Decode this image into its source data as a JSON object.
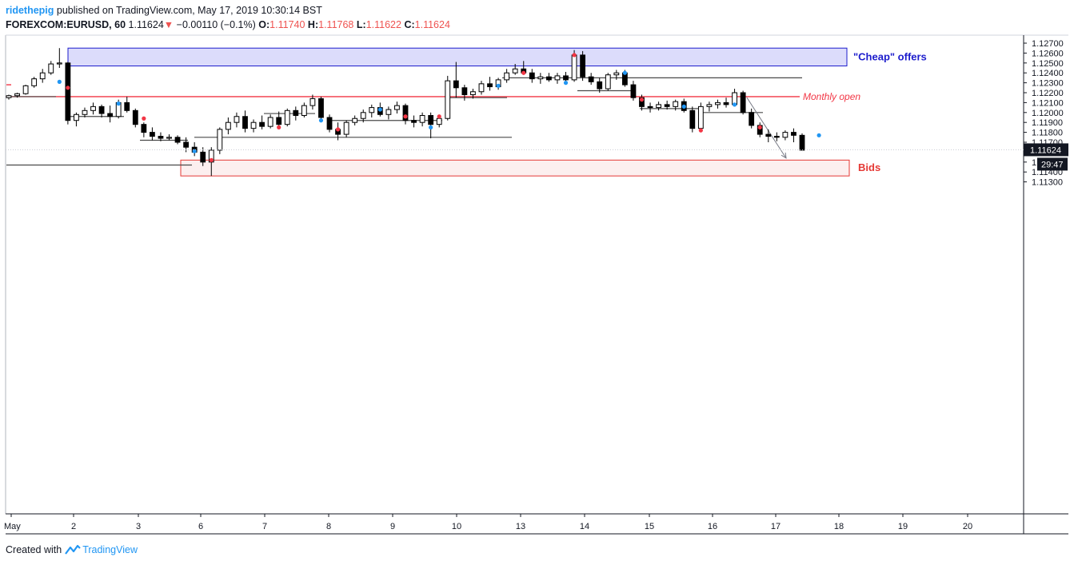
{
  "header": {
    "author": "ridethepig",
    "published_text": "published on TradingView.com, May 17, 2019 10:30:14 BST",
    "symbol": "FOREXCOM:EURUSD, 60",
    "last": "1.11624",
    "change_arrow": "▼",
    "change": "−0.00110 (−0.1%)",
    "open_label": "O:",
    "open_value": "1.11740",
    "high_label": "H:",
    "high_value": "1.11768",
    "low_label": "L:",
    "low_value": "1.11622",
    "close_label": "C:",
    "close_value": "1.11624"
  },
  "footer": {
    "created_with": "Created with",
    "brand": "TradingView"
  },
  "price_tag": {
    "value": "1.11624",
    "countdown": "29:47"
  },
  "colors": {
    "candle_up": "#ffffff",
    "candle_down": "#000000",
    "wick": "#000000",
    "monthly_open": "#f23645",
    "offer_zone_fill": "#dcdcfb",
    "offer_zone_stroke": "#1c1ccc",
    "bid_zone_fill": "#fcefef",
    "bid_zone_stroke": "#e53935",
    "marker_blue": "#2196f3",
    "marker_red": "#f23645"
  },
  "chart_data": {
    "type": "candlestick",
    "title": "",
    "ylim": [
      1.1125,
      1.1274
    ],
    "y_ticks": [
      "1.12700",
      "1.12600",
      "1.12500",
      "1.12400",
      "1.12300",
      "1.12200",
      "1.12100",
      "1.12000",
      "1.11900",
      "1.11800",
      "1.11700",
      "1.11500",
      "1.11400",
      "1.11300"
    ],
    "x_ticks": [
      "May",
      "2",
      "3",
      "6",
      "7",
      "8",
      "9",
      "10",
      "13",
      "14",
      "15",
      "16",
      "17",
      "18",
      "19",
      "20"
    ],
    "grid": false,
    "annotations": {
      "offer_zone": {
        "label": "\"Cheap\" offers",
        "y_top": 1.1265,
        "y_bottom": 1.1247,
        "x_from": "2",
        "x_to": "16"
      },
      "bid_zone": {
        "label": "Bids",
        "y_top": 1.1152,
        "y_bottom": 1.1136,
        "x_from": "6",
        "x_to": "17"
      },
      "monthly_open": {
        "label": "Monthly open",
        "y": 1.1216
      },
      "projection_arrow": {
        "from_y": 1.1215,
        "to_y": 1.1154,
        "x_from": "16",
        "x_to": "17"
      }
    },
    "series": [
      {
        "points": [
          [
            1.1215,
            1.1218,
            1.1213,
            1.1217
          ],
          [
            1.1217,
            1.122,
            1.1215,
            1.1219
          ],
          [
            1.1219,
            1.1228,
            1.1218,
            1.1227
          ],
          [
            1.1227,
            1.1236,
            1.1225,
            1.1234
          ],
          [
            1.1234,
            1.1244,
            1.123,
            1.124
          ],
          [
            1.124,
            1.1252,
            1.1238,
            1.1249
          ],
          [
            1.1249,
            1.1265,
            1.1245,
            1.125
          ],
          [
            1.125,
            1.1251,
            1.1188,
            1.1192
          ],
          [
            1.1192,
            1.12,
            1.1186,
            1.1198
          ],
          [
            1.1198,
            1.1205,
            1.1195,
            1.1202
          ],
          [
            1.1202,
            1.121,
            1.1198,
            1.1206
          ],
          [
            1.1206,
            1.1208,
            1.1195,
            1.1199
          ],
          [
            1.1199,
            1.1207,
            1.119,
            1.1196
          ],
          [
            1.1196,
            1.1213,
            1.1194,
            1.121
          ],
          [
            1.121,
            1.1216,
            1.12,
            1.1202
          ],
          [
            1.1202,
            1.1204,
            1.1185,
            1.1188
          ],
          [
            1.1188,
            1.119,
            1.1175,
            1.118
          ],
          [
            1.118,
            1.1185,
            1.1172,
            1.1176
          ],
          [
            1.1176,
            1.118,
            1.1171,
            1.1174
          ],
          [
            1.1174,
            1.1178,
            1.1172,
            1.1175
          ],
          [
            1.1175,
            1.1177,
            1.1168,
            1.117
          ],
          [
            1.117,
            1.1175,
            1.116,
            1.1165
          ],
          [
            1.1165,
            1.117,
            1.1156,
            1.116
          ],
          [
            1.116,
            1.1165,
            1.1146,
            1.115
          ],
          [
            1.115,
            1.1165,
            1.1136,
            1.1162
          ],
          [
            1.1162,
            1.1185,
            1.1158,
            1.1183
          ],
          [
            1.1183,
            1.1195,
            1.1178,
            1.119
          ],
          [
            1.119,
            1.12,
            1.1185,
            1.1196
          ],
          [
            1.1196,
            1.1202,
            1.118,
            1.1184
          ],
          [
            1.1184,
            1.1193,
            1.118,
            1.119
          ],
          [
            1.119,
            1.1197,
            1.1183,
            1.1186
          ],
          [
            1.1186,
            1.1198,
            1.1184,
            1.1195
          ],
          [
            1.1195,
            1.1201,
            1.1185,
            1.1188
          ],
          [
            1.1188,
            1.1204,
            1.1186,
            1.1202
          ],
          [
            1.1202,
            1.1206,
            1.1192,
            1.1197
          ],
          [
            1.1197,
            1.121,
            1.1195,
            1.1207
          ],
          [
            1.1207,
            1.1218,
            1.1203,
            1.1214
          ],
          [
            1.1214,
            1.1216,
            1.1192,
            1.1195
          ],
          [
            1.1195,
            1.1198,
            1.118,
            1.1183
          ],
          [
            1.1183,
            1.119,
            1.1172,
            1.1178
          ],
          [
            1.1178,
            1.1192,
            1.1175,
            1.119
          ],
          [
            1.119,
            1.1197,
            1.1187,
            1.1194
          ],
          [
            1.1194,
            1.1203,
            1.119,
            1.12
          ],
          [
            1.12,
            1.1208,
            1.1195,
            1.1205
          ],
          [
            1.1205,
            1.121,
            1.1196,
            1.1198
          ],
          [
            1.1198,
            1.1206,
            1.1193,
            1.1203
          ],
          [
            1.1203,
            1.1211,
            1.1199,
            1.1207
          ],
          [
            1.1207,
            1.1209,
            1.1188,
            1.1192
          ],
          [
            1.1192,
            1.1197,
            1.1185,
            1.119
          ],
          [
            1.119,
            1.12,
            1.1186,
            1.1197
          ],
          [
            1.1197,
            1.12,
            1.1174,
            1.1188
          ],
          [
            1.1188,
            1.1196,
            1.1185,
            1.1194
          ],
          [
            1.1194,
            1.1237,
            1.1192,
            1.1232
          ],
          [
            1.1232,
            1.1251,
            1.1215,
            1.1225
          ],
          [
            1.1225,
            1.1228,
            1.1212,
            1.1218
          ],
          [
            1.1218,
            1.1224,
            1.1214,
            1.1221
          ],
          [
            1.1221,
            1.1232,
            1.1218,
            1.1229
          ],
          [
            1.1229,
            1.1236,
            1.1222,
            1.1226
          ],
          [
            1.1226,
            1.1235,
            1.1223,
            1.1233
          ],
          [
            1.1233,
            1.1244,
            1.123,
            1.124
          ],
          [
            1.124,
            1.1249,
            1.1238,
            1.1244
          ],
          [
            1.1244,
            1.1252,
            1.1238,
            1.124
          ],
          [
            1.124,
            1.1244,
            1.123,
            1.1234
          ],
          [
            1.1234,
            1.124,
            1.1229,
            1.1236
          ],
          [
            1.1236,
            1.124,
            1.1231,
            1.1233
          ],
          [
            1.1233,
            1.124,
            1.1229,
            1.1237
          ],
          [
            1.1237,
            1.1241,
            1.123,
            1.1233
          ],
          [
            1.1233,
            1.1263,
            1.1231,
            1.1258
          ],
          [
            1.1258,
            1.1262,
            1.1232,
            1.1236
          ],
          [
            1.1236,
            1.124,
            1.1228,
            1.1231
          ],
          [
            1.1231,
            1.1235,
            1.122,
            1.1224
          ],
          [
            1.1224,
            1.124,
            1.1222,
            1.1238
          ],
          [
            1.1238,
            1.1243,
            1.1233,
            1.124
          ],
          [
            1.124,
            1.1243,
            1.1226,
            1.1228
          ],
          [
            1.1228,
            1.1232,
            1.1212,
            1.1215
          ],
          [
            1.1215,
            1.1218,
            1.1202,
            1.1206
          ],
          [
            1.1206,
            1.121,
            1.12,
            1.1205
          ],
          [
            1.1205,
            1.1211,
            1.1202,
            1.1208
          ],
          [
            1.1208,
            1.1212,
            1.1203,
            1.1206
          ],
          [
            1.1206,
            1.1213,
            1.1202,
            1.1211
          ],
          [
            1.1211,
            1.1214,
            1.12,
            1.1202
          ],
          [
            1.1202,
            1.1206,
            1.118,
            1.1184
          ],
          [
            1.1184,
            1.121,
            1.1181,
            1.1206
          ],
          [
            1.1206,
            1.1211,
            1.1201,
            1.1208
          ],
          [
            1.1208,
            1.1213,
            1.1204,
            1.121
          ],
          [
            1.121,
            1.1215,
            1.1205,
            1.1208
          ],
          [
            1.1208,
            1.1224,
            1.1206,
            1.122
          ],
          [
            1.122,
            1.1222,
            1.1198,
            1.12
          ],
          [
            1.12,
            1.1204,
            1.1184,
            1.1187
          ],
          [
            1.1187,
            1.119,
            1.1175,
            1.1178
          ],
          [
            1.1178,
            1.1183,
            1.117,
            1.1176
          ],
          [
            1.1176,
            1.118,
            1.1171,
            1.1175
          ],
          [
            1.1175,
            1.1182,
            1.1172,
            1.118
          ],
          [
            1.118,
            1.1184,
            1.117,
            1.1177
          ],
          [
            1.1177,
            1.1179,
            1.1162,
            1.1162
          ]
        ]
      }
    ]
  }
}
